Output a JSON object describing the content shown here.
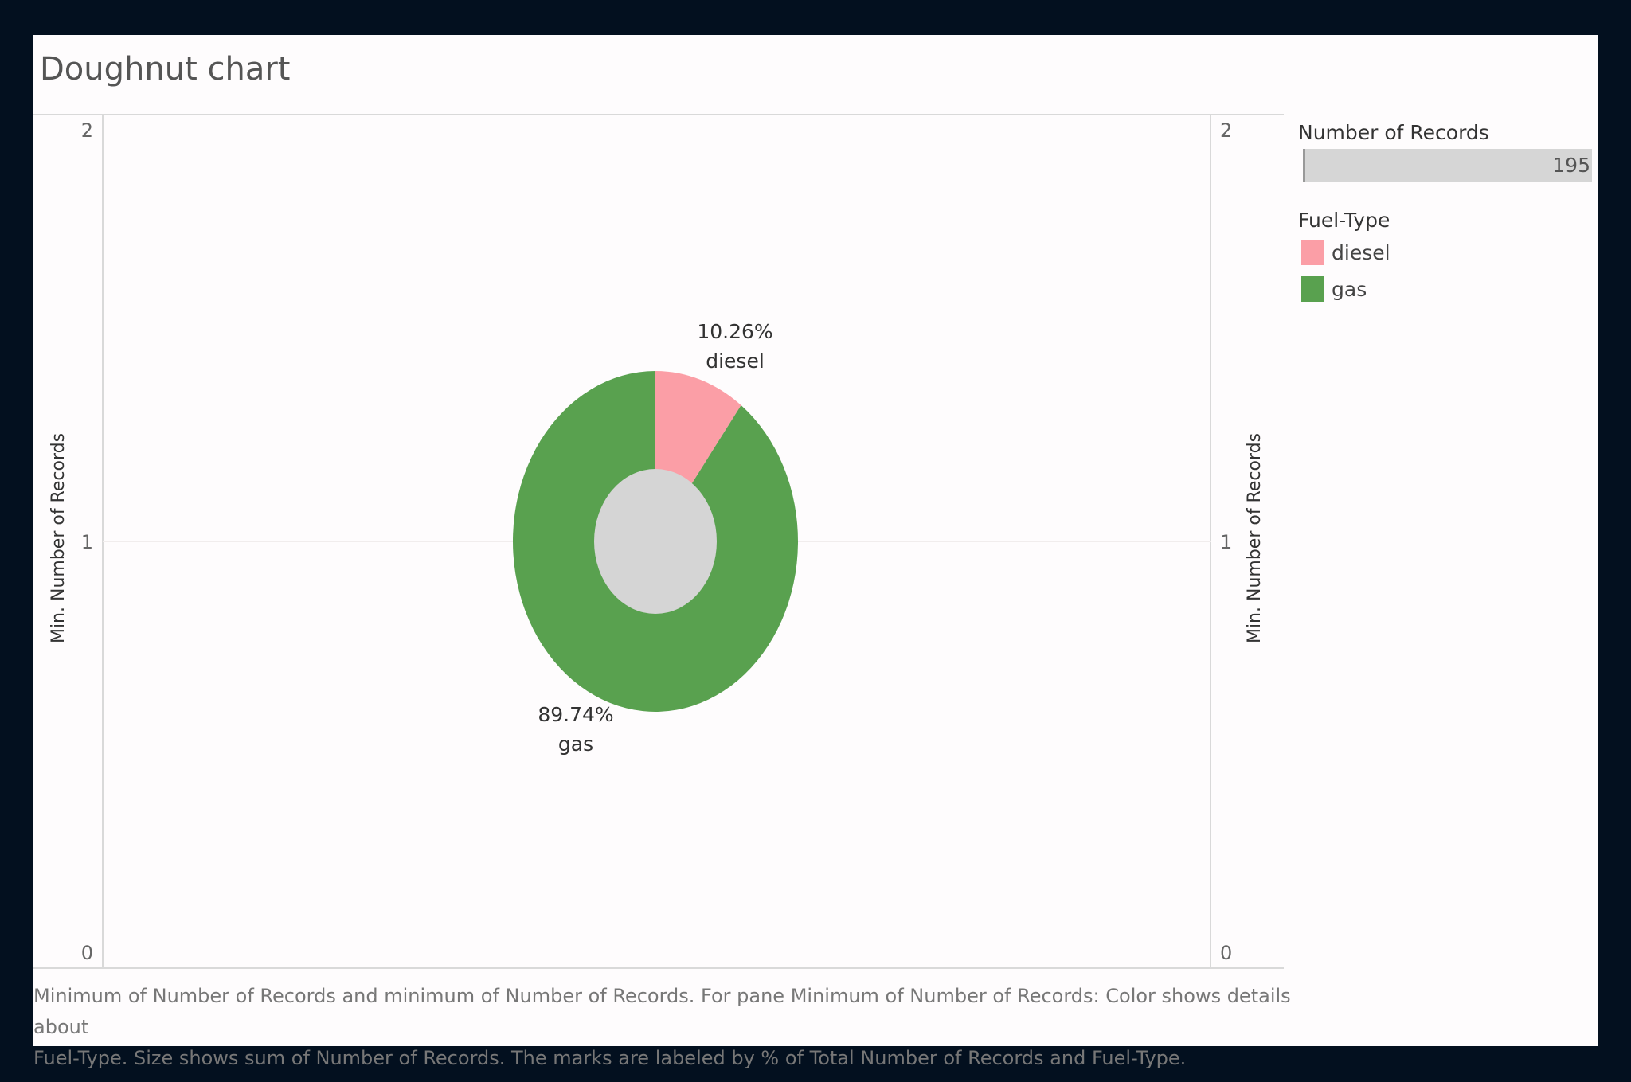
{
  "title": "Doughnut chart",
  "chart_data": {
    "type": "pie",
    "subtype": "doughnut",
    "categories": [
      "diesel",
      "gas"
    ],
    "values": [
      10.26,
      89.74
    ],
    "value_unit": "%",
    "colors": {
      "diesel": "#fb9ea6",
      "gas": "#59a14f",
      "hole": "#d5d5d5"
    },
    "data_labels": [
      {
        "category": "diesel",
        "percent": "10.26%",
        "name": "diesel"
      },
      {
        "category": "gas",
        "percent": "89.74%",
        "name": "gas"
      }
    ],
    "left_axis": {
      "label": "Min. Number of Records",
      "ticks": [
        "2",
        "1",
        "0"
      ],
      "range": [
        0,
        2
      ]
    },
    "right_axis": {
      "label": "Min. Number of Records",
      "ticks": [
        "2",
        "1",
        "0"
      ],
      "range": [
        0,
        2
      ]
    },
    "grid": "horizontal gridline at 1"
  },
  "legend": {
    "size_title": "Number of Records",
    "size_value": "195",
    "color_title": "Fuel-Type",
    "items": [
      {
        "label": "diesel",
        "color": "#fb9ea6"
      },
      {
        "label": "gas",
        "color": "#59a14f"
      }
    ]
  },
  "caption": {
    "line1": "Minimum of Number of Records and minimum of Number of Records.  For pane Minimum of Number of Records:  Color shows details about",
    "line2": "Fuel-Type.  Size shows sum of Number of Records.  The marks are labeled by % of Total Number of Records and Fuel-Type."
  }
}
